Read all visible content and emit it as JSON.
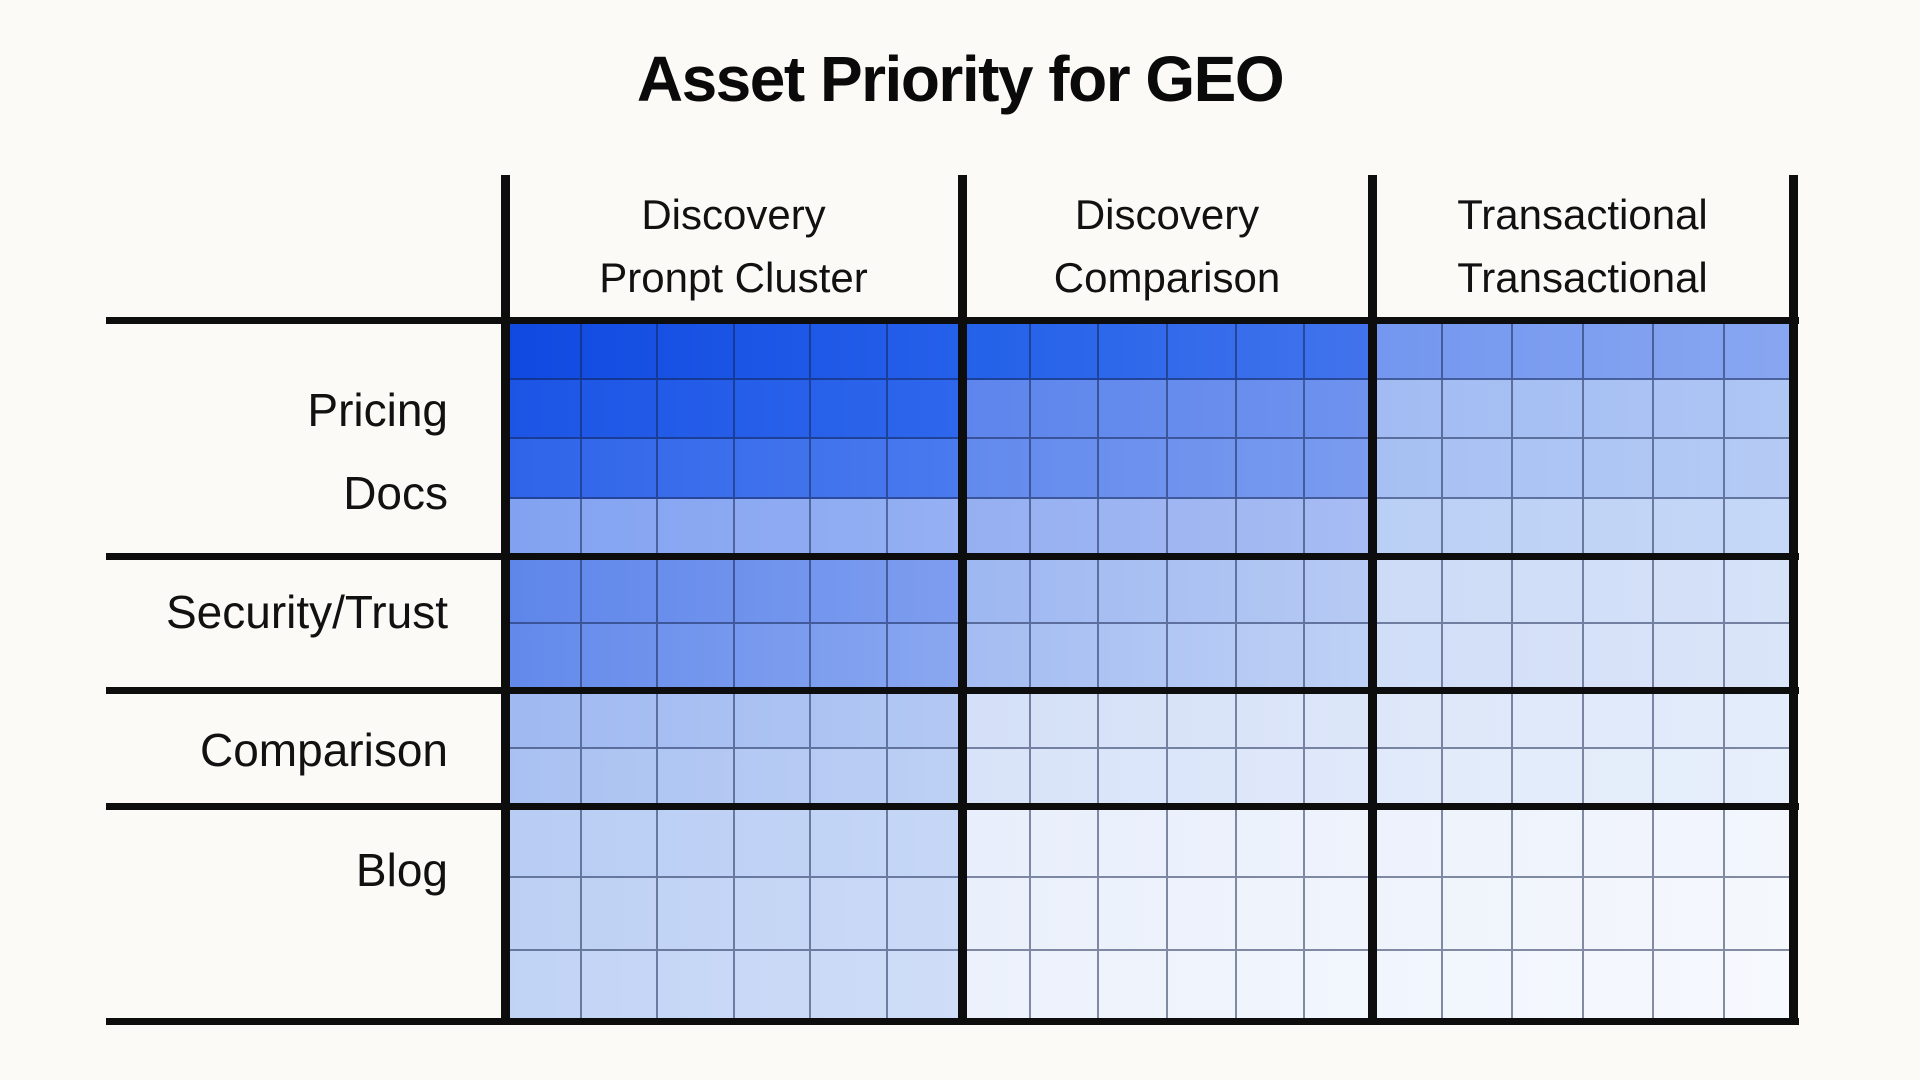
{
  "title": "Asset Priority for GEO",
  "colors": {
    "background": "#fbfaf7",
    "frame_line": "#0d0d0d",
    "mini_grid_line": "rgba(18,32,74,0.5)",
    "text": "#111111",
    "heat_dark": "#1049e0",
    "heat_light": "#f6f9fe"
  },
  "chart_data": {
    "type": "heatmap",
    "title": "Asset Priority for GEO",
    "legend": "none",
    "grid": "fine sub-grid inside each block, thick black separators between bands/columns",
    "columns": [
      {
        "label": "Discovery Pronpt Cluster",
        "line1": "Discovery",
        "line2": "Pronpt Cluster"
      },
      {
        "label": "Discovery Comparison",
        "line1": "Discovery",
        "line2": "Comparison"
      },
      {
        "label": "Transactional Transactional",
        "line1": "Transactional",
        "line2": "Transactional"
      }
    ],
    "mini_cols_per_block": 6,
    "row_bands": [
      {
        "labels": [
          "Pricing",
          "Docs"
        ],
        "mini_rows": 4,
        "estimated_intensity": [
          0.95,
          0.75,
          0.5
        ],
        "cells": [
          {
            "row_gradients": [
              [
                "#1049e0",
                "#2560ea"
              ],
              [
                "#1c55e5",
                "#2e66ec"
              ],
              [
                "#2e64e9",
                "#4a7aee"
              ],
              [
                "#82a2f1",
                "#95b0f3"
              ]
            ]
          },
          {
            "row_gradients": [
              [
                "#2261e9",
                "#4273ec"
              ],
              [
                "#5d85ec",
                "#6e92ee"
              ],
              [
                "#628aed",
                "#7a9bef"
              ],
              [
                "#95aff1",
                "#a7bcf3"
              ]
            ]
          },
          {
            "row_gradients": [
              [
                "#7397ef",
                "#88a6f1"
              ],
              [
                "#a2bcf3",
                "#aec6f4"
              ],
              [
                "#a6c0f3",
                "#b5cbf5"
              ],
              [
                "#bacff5",
                "#c6d8f7"
              ]
            ]
          }
        ]
      },
      {
        "labels": [
          "Security/Trust"
        ],
        "mini_rows": 2,
        "estimated_intensity": [
          0.65,
          0.35,
          0.18
        ],
        "cells": [
          {
            "row_gradients": [
              [
                "#5e86ea",
                "#7e9def"
              ],
              [
                "#6289eb",
                "#8aa7f0"
              ]
            ]
          },
          {
            "row_gradients": [
              [
                "#9db7f1",
                "#b6caf3"
              ],
              [
                "#a4bcf2",
                "#bed1f5"
              ]
            ]
          },
          {
            "row_gradients": [
              [
                "#cddbf7",
                "#d6e2f8"
              ],
              [
                "#d1def8",
                "#dbe5f9"
              ]
            ]
          }
        ]
      },
      {
        "labels": [
          "Comparison"
        ],
        "mini_rows": 2,
        "estimated_intensity": [
          0.38,
          0.15,
          0.12
        ],
        "cells": [
          {
            "row_gradients": [
              [
                "#9fb9f1",
                "#b3c8f3"
              ],
              [
                "#a9c1f2",
                "#bdd0f4"
              ]
            ]
          },
          {
            "row_gradients": [
              [
                "#d4e0f8",
                "#dde6f9"
              ],
              [
                "#d8e3f9",
                "#e0e9fa"
              ]
            ]
          },
          {
            "row_gradients": [
              [
                "#dde7f9",
                "#e3ecfa"
              ],
              [
                "#e0eafa",
                "#e7effb"
              ]
            ]
          }
        ]
      },
      {
        "labels": [
          "Blog"
        ],
        "mini_rows": 3,
        "estimated_intensity": [
          0.25,
          0.07,
          0.05
        ],
        "cells": [
          {
            "row_gradients": [
              [
                "#b8ccf4",
                "#c6d7f6"
              ],
              [
                "#bdd0f4",
                "#cbdaf6"
              ],
              [
                "#c1d3f5",
                "#cfddf7"
              ]
            ]
          },
          {
            "row_gradients": [
              [
                "#e8eefb",
                "#eef3fc"
              ],
              [
                "#eaf0fb",
                "#f0f4fc"
              ],
              [
                "#ecf1fc",
                "#f2f6fd"
              ]
            ]
          },
          {
            "row_gradients": [
              [
                "#edf2fc",
                "#f3f6fd"
              ],
              [
                "#eff4fc",
                "#f5f8fd"
              ],
              [
                "#f1f5fd",
                "#f6f9fe"
              ]
            ]
          }
        ]
      }
    ]
  }
}
